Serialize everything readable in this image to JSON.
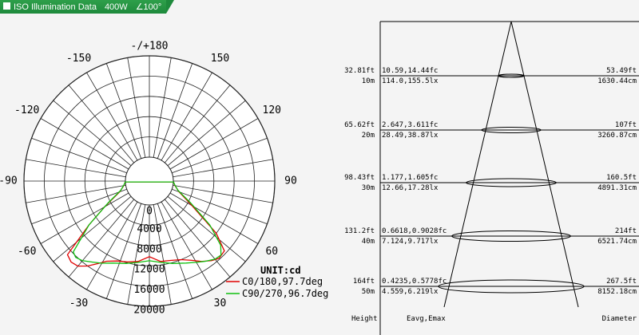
{
  "header": {
    "title": "ISO Illumination Data",
    "power": "400W",
    "angle": "∠100°"
  },
  "chart_data": [
    {
      "type": "polar",
      "unit_label": "UNIT:cd",
      "angle_labels": [
        {
          "deg": 180,
          "text": "-/+180"
        },
        {
          "deg": 150,
          "text": "150"
        },
        {
          "deg": -150,
          "text": "-150"
        },
        {
          "deg": 120,
          "text": "120"
        },
        {
          "deg": -120,
          "text": "-120"
        },
        {
          "deg": 90,
          "text": "90"
        },
        {
          "deg": -90,
          "text": "-90"
        },
        {
          "deg": 60,
          "text": "60"
        },
        {
          "deg": -60,
          "text": "-60"
        },
        {
          "deg": 30,
          "text": "30"
        },
        {
          "deg": -30,
          "text": "-30"
        }
      ],
      "radial_ticks": [
        "0",
        "4000",
        "8000",
        "12000",
        "16000",
        "20000"
      ],
      "rmax": 20000,
      "series": [
        {
          "name": "C0/180,97.7deg",
          "color": "#e00000",
          "points": [
            [
              -48,
              17000
            ],
            [
              -44,
              17500
            ],
            [
              -40,
              17200
            ],
            [
              -36,
              16000
            ],
            [
              -32,
              14500
            ],
            [
              -28,
              13200
            ],
            [
              -22,
              12300
            ],
            [
              -15,
              11800
            ],
            [
              -8,
              11300
            ],
            [
              0,
              10200
            ],
            [
              8,
              11300
            ],
            [
              15,
              11500
            ],
            [
              22,
              12000
            ],
            [
              28,
              13000
            ],
            [
              33,
              14200
            ],
            [
              38,
              15200
            ],
            [
              42,
              15800
            ],
            [
              47,
              15500
            ],
            [
              52,
              12000
            ],
            [
              60,
              5000
            ],
            [
              70,
              1500
            ],
            [
              80,
              400
            ],
            [
              88,
              50
            ],
            [
              -88,
              50
            ],
            [
              -80,
              400
            ],
            [
              -70,
              1500
            ],
            [
              -60,
              5500
            ],
            [
              -54,
              10000
            ]
          ]
        },
        {
          "name": "C90/270,96.7deg",
          "color": "#10c010",
          "points": [
            [
              -47,
              15800
            ],
            [
              -44,
              16200
            ],
            [
              -40,
              15800
            ],
            [
              -35,
              14800
            ],
            [
              -30,
              14000
            ],
            [
              -24,
              13000
            ],
            [
              -16,
              12200
            ],
            [
              -8,
              11500
            ],
            [
              0,
              11000
            ],
            [
              8,
              11500
            ],
            [
              16,
              12200
            ],
            [
              24,
              13000
            ],
            [
              30,
              13800
            ],
            [
              35,
              14600
            ],
            [
              40,
              15400
            ],
            [
              44,
              15600
            ],
            [
              48,
              14200
            ],
            [
              54,
              10000
            ],
            [
              62,
              4500
            ],
            [
              72,
              1200
            ],
            [
              82,
              300
            ],
            [
              88,
              40
            ],
            [
              -88,
              40
            ],
            [
              -82,
              300
            ],
            [
              -72,
              1200
            ],
            [
              -62,
              4500
            ],
            [
              -54,
              10000
            ]
          ]
        }
      ]
    },
    {
      "type": "table",
      "columns": [
        "Height",
        "Eavg,Emax",
        "Diameter"
      ],
      "rows": [
        {
          "height_ft": "32.81ft",
          "height_m": "10m",
          "fc": "10.59,14.44fc",
          "lx": "114.0,155.5lx",
          "diam_ft": "53.49ft",
          "diam_cm": "1630.44cm"
        },
        {
          "height_ft": "65.62ft",
          "height_m": "20m",
          "fc": "2.647,3.611fc",
          "lx": "28.49,38.87lx",
          "diam_ft": "107ft",
          "diam_cm": "3260.87cm"
        },
        {
          "height_ft": "98.43ft",
          "height_m": "30m",
          "fc": "1.177,1.605fc",
          "lx": "12.66,17.28lx",
          "diam_ft": "160.5ft",
          "diam_cm": "4891.31cm"
        },
        {
          "height_ft": "131.2ft",
          "height_m": "40m",
          "fc": "0.6618,0.9028fc",
          "lx": "7.124,9.717lx",
          "diam_ft": "214ft",
          "diam_cm": "6521.74cm"
        },
        {
          "height_ft": "164ft",
          "height_m": "50m",
          "fc": "0.4235,0.5778fc",
          "lx": "4.559,6.219lx",
          "diam_ft": "267.5ft",
          "diam_cm": "8152.18cm"
        }
      ]
    }
  ]
}
